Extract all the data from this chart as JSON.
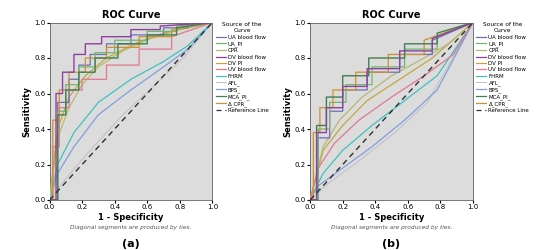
{
  "title": "ROC Curve",
  "xlabel": "1 - Specificity",
  "ylabel": "Sensitivity",
  "footnote": "Diagonal segments are produced by ties.",
  "legend_title": "Source of the\nCurve",
  "legend_entries": [
    "UA blood flow",
    "UA_PI",
    "CPR",
    "DV blood flow",
    "DV PI",
    "UV blood flow",
    "FHRM",
    "AFL_",
    "BPS_",
    "MCA_PI_",
    "Δ_CPR_",
    "Reference Line"
  ],
  "curve_colors": [
    "#7070b8",
    "#70b870",
    "#b8b870",
    "#9040a0",
    "#c0a840",
    "#e07890",
    "#40c0c0",
    "#c0c0c0",
    "#80a0e0",
    "#408050",
    "#d09030",
    "#404040"
  ],
  "bg_color": "#dcdcdc",
  "panel_labels": [
    "(a)",
    "(b)"
  ],
  "tick_labels": [
    "0.0",
    "0.2",
    "0.4",
    "0.6",
    "0.8",
    "1.0"
  ]
}
